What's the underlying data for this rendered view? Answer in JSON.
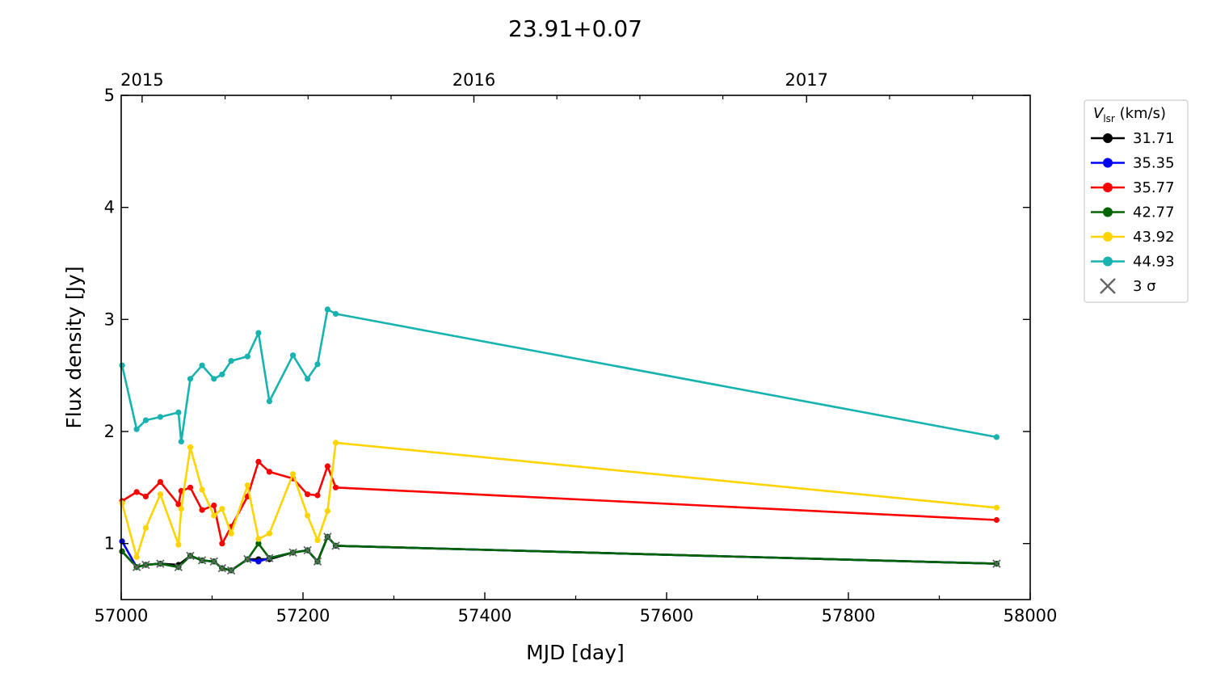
{
  "chart_data": {
    "type": "line",
    "title": "23.91+0.07",
    "xlabel": "MJD [day]",
    "ylabel": "Flux density [Jy]",
    "xlim": [
      57000,
      58000
    ],
    "ylim": [
      0.5,
      5
    ],
    "xticks": [
      57000,
      57200,
      57400,
      57600,
      57800,
      58000
    ],
    "yticks": [
      1,
      2,
      3,
      4,
      5
    ],
    "top_axis": {
      "ticks": [
        {
          "x": 57023,
          "label": "2015"
        },
        {
          "x": 57388,
          "label": "2016"
        },
        {
          "x": 57754,
          "label": "2017"
        }
      ]
    },
    "legend": {
      "title_italic": "V",
      "title_sub": "lsr",
      "title_rest": " (km/s)",
      "placement": "outside-right",
      "sigma_label": "3 σ"
    },
    "sigma_marker_color": "#666666",
    "series": [
      {
        "name": "31.71",
        "color": "#000000",
        "x": [
          57001,
          57017,
          57027,
          57043,
          57063,
          57076,
          57089,
          57102,
          57111,
          57121,
          57139,
          57151,
          57163,
          57189,
          57205,
          57216,
          57227,
          57236,
          57963
        ],
        "y": [
          0.93,
          0.79,
          0.81,
          0.82,
          0.81,
          0.89,
          0.85,
          0.84,
          0.78,
          0.76,
          0.86,
          0.86,
          0.86,
          0.92,
          0.94,
          0.84,
          1.06,
          0.98,
          0.82
        ],
        "sigma": [
          false,
          false,
          false,
          false,
          false,
          false,
          false,
          false,
          false,
          false,
          false,
          false,
          false,
          false,
          false,
          false,
          false,
          false,
          false
        ]
      },
      {
        "name": "35.35",
        "color": "#0000ff",
        "x": [
          57001,
          57017,
          57027,
          57043,
          57063,
          57076,
          57089,
          57102,
          57111,
          57121,
          57139,
          57151,
          57163,
          57189,
          57205,
          57216,
          57227,
          57236,
          57963
        ],
        "y": [
          1.02,
          0.79,
          0.81,
          0.82,
          0.79,
          0.89,
          0.85,
          0.84,
          0.78,
          0.76,
          0.86,
          0.84,
          0.87,
          0.92,
          0.94,
          0.84,
          1.06,
          0.98,
          0.82
        ],
        "sigma": [
          false,
          true,
          true,
          true,
          true,
          true,
          true,
          true,
          true,
          true,
          true,
          false,
          true,
          true,
          true,
          true,
          true,
          true,
          true
        ]
      },
      {
        "name": "35.77",
        "color": "#ff0000",
        "x": [
          57001,
          57017,
          57027,
          57043,
          57063,
          57066,
          57076,
          57089,
          57102,
          57111,
          57121,
          57139,
          57151,
          57163,
          57189,
          57205,
          57216,
          57227,
          57236,
          57963
        ],
        "y": [
          1.38,
          1.46,
          1.42,
          1.55,
          1.35,
          1.47,
          1.5,
          1.3,
          1.34,
          1.0,
          1.15,
          1.42,
          1.73,
          1.64,
          1.58,
          1.44,
          1.43,
          1.69,
          1.5,
          1.21
        ],
        "sigma": [
          false,
          false,
          false,
          false,
          false,
          false,
          false,
          false,
          false,
          false,
          false,
          false,
          false,
          false,
          false,
          false,
          false,
          false,
          false,
          false
        ]
      },
      {
        "name": "42.77",
        "color": "#006400",
        "x": [
          57001,
          57017,
          57027,
          57043,
          57063,
          57076,
          57089,
          57102,
          57111,
          57121,
          57139,
          57151,
          57163,
          57189,
          57205,
          57216,
          57227,
          57236,
          57963
        ],
        "y": [
          0.93,
          0.79,
          0.81,
          0.82,
          0.79,
          0.89,
          0.85,
          0.84,
          0.78,
          0.76,
          0.86,
          1.0,
          0.87,
          0.92,
          0.94,
          0.84,
          1.06,
          0.98,
          0.82
        ],
        "sigma": [
          false,
          true,
          true,
          true,
          true,
          true,
          true,
          true,
          true,
          true,
          true,
          false,
          true,
          true,
          true,
          true,
          true,
          true,
          true
        ]
      },
      {
        "name": "43.92",
        "color": "#ffd400",
        "x": [
          57001,
          57017,
          57027,
          57043,
          57063,
          57066,
          57076,
          57089,
          57102,
          57111,
          57121,
          57139,
          57151,
          57163,
          57189,
          57205,
          57216,
          57227,
          57236,
          57963
        ],
        "y": [
          1.36,
          0.88,
          1.14,
          1.44,
          0.99,
          1.31,
          1.86,
          1.48,
          1.25,
          1.31,
          1.09,
          1.52,
          1.04,
          1.09,
          1.62,
          1.25,
          1.03,
          1.29,
          1.9,
          1.32
        ],
        "sigma": [
          false,
          false,
          false,
          false,
          false,
          false,
          false,
          false,
          false,
          false,
          false,
          false,
          false,
          false,
          false,
          false,
          false,
          false,
          false,
          false
        ]
      },
      {
        "name": "44.93",
        "color": "#17b3b0",
        "x": [
          57001,
          57017,
          57027,
          57043,
          57063,
          57066,
          57076,
          57089,
          57102,
          57111,
          57121,
          57139,
          57151,
          57163,
          57189,
          57205,
          57216,
          57227,
          57236,
          57963
        ],
        "y": [
          2.59,
          2.02,
          2.1,
          2.13,
          2.17,
          1.91,
          2.47,
          2.59,
          2.47,
          2.51,
          2.63,
          2.67,
          2.88,
          2.27,
          2.68,
          2.47,
          2.6,
          3.09,
          3.05,
          1.95
        ],
        "sigma": [
          false,
          false,
          false,
          false,
          false,
          false,
          false,
          false,
          false,
          false,
          false,
          false,
          false,
          false,
          false,
          false,
          false,
          false,
          false,
          false
        ]
      }
    ]
  }
}
